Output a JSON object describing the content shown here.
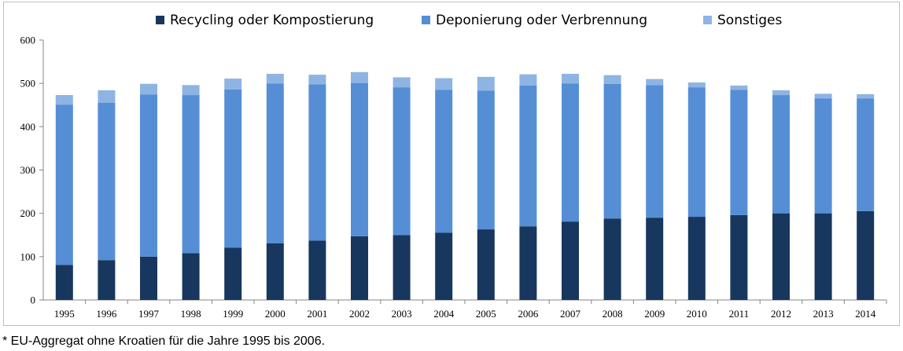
{
  "chart_data": {
    "type": "bar",
    "stacked": true,
    "categories": [
      "1995",
      "1996",
      "1997",
      "1998",
      "1999",
      "2000",
      "2001",
      "2002",
      "2003",
      "2004",
      "2005",
      "2006",
      "2007",
      "2008",
      "2009",
      "2010",
      "2011",
      "2012",
      "2013",
      "2014"
    ],
    "series": [
      {
        "name": "Recycling oder Kompostierung",
        "color": "#17375e",
        "values": [
          81,
          92,
          100,
          108,
          121,
          131,
          137,
          147,
          150,
          155,
          163,
          170,
          181,
          188,
          190,
          192,
          196,
          200,
          200,
          205
        ]
      },
      {
        "name": "Deponierung oder Verbrennung",
        "color": "#558ed5",
        "values": [
          370,
          363,
          374,
          365,
          365,
          369,
          361,
          354,
          341,
          330,
          320,
          325,
          319,
          311,
          306,
          299,
          289,
          273,
          265,
          260
        ]
      },
      {
        "name": "Sonstiges",
        "color": "#8eb4e3",
        "values": [
          22,
          29,
          25,
          23,
          25,
          22,
          22,
          25,
          23,
          27,
          32,
          26,
          22,
          20,
          14,
          11,
          10,
          11,
          11,
          10
        ]
      }
    ],
    "ylim": [
      0,
      600
    ],
    "yticks": [
      "0",
      "100",
      "200",
      "300",
      "400",
      "500",
      "600"
    ],
    "grid": false,
    "legend_position": "top"
  },
  "footnote": "* EU-Aggregat ohne Kroatien für die Jahre 1995 bis 2006."
}
